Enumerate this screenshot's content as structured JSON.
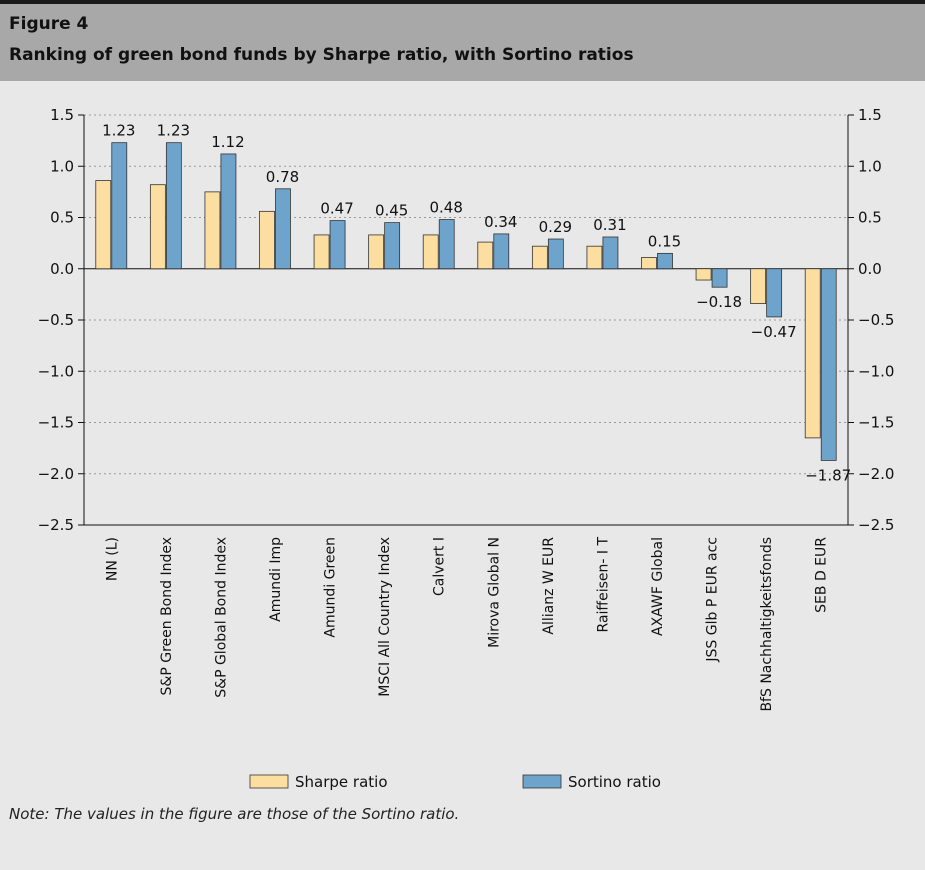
{
  "figure": {
    "label": "Figure 4",
    "title": "Ranking of green bond funds by Sharpe ratio, with Sortino ratios",
    "note": "Note: The values in the figure are those of the Sortino ratio."
  },
  "colors": {
    "sharpe": "#fcdfa0",
    "sortino": "#6ea4cc",
    "stroke": "#333333",
    "grid": "#9a9a9a"
  },
  "chart_data": {
    "type": "bar",
    "categories": [
      "NN (L)",
      "S&P Green Bond Index",
      "S&P Global Bond Index",
      "Amundi Imp",
      "Amundi Green",
      "MSCI All Country Index",
      "Calvert I",
      "Mirova Global N",
      "Allianz W EUR",
      "Raiffeisen- I T",
      "AXAWF Global",
      "JSS Glb P EUR acc",
      "BfS Nachhaltigkeitsfonds",
      "SEB D EUR"
    ],
    "series": [
      {
        "name": "Sharpe ratio",
        "values": [
          0.86,
          0.82,
          0.75,
          0.56,
          0.33,
          0.33,
          0.33,
          0.26,
          0.22,
          0.22,
          0.11,
          -0.11,
          -0.34,
          -1.65
        ]
      },
      {
        "name": "Sortino ratio",
        "values": [
          1.23,
          1.23,
          1.12,
          0.78,
          0.47,
          0.45,
          0.48,
          0.34,
          0.29,
          0.31,
          0.15,
          -0.18,
          -0.47,
          -1.87
        ]
      }
    ],
    "data_labels": [
      "1.23",
      "1.23",
      "1.12",
      "0.78",
      "0.47",
      "0.45",
      "0.48",
      "0.34",
      "0.29",
      "0.31",
      "0.15",
      "−0.18",
      "−0.47",
      "−1.87"
    ],
    "yticks": [
      "1.5",
      "1.0",
      "0.5",
      "0.0",
      "−0.5",
      "−1.0",
      "−1.5",
      "−2.0",
      "−2.5"
    ],
    "ylim": [
      -2.5,
      1.5
    ],
    "legend_position": "bottom",
    "grid": true
  }
}
